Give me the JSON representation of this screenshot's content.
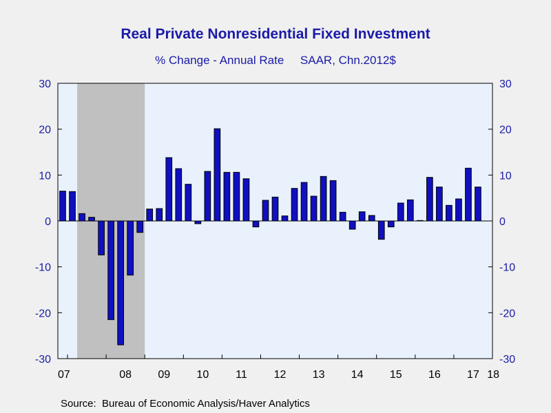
{
  "chart_data": {
    "type": "bar",
    "title": "Real Private Nonresidential Fixed Investment",
    "subtitle": "% Change - Annual Rate     SAAR, Chn.2012$",
    "source": "Source:  Bureau of Economic Analysis/Haver Analytics",
    "ylim": [
      -30,
      30
    ],
    "y_ticks": [
      30,
      20,
      10,
      0,
      -10,
      -20,
      -30
    ],
    "x_tick_labels": [
      "07",
      "08",
      "09",
      "10",
      "11",
      "12",
      "13",
      "14",
      "15",
      "16",
      "17",
      "18"
    ],
    "recession_shading": {
      "start": "2007Q4",
      "end": "2009Q2"
    },
    "grid": false,
    "colors": {
      "bar": "#1010c0",
      "bar_edge": "#000000",
      "plot_bg": "#e9f2fc",
      "recession": "#c0c0c0",
      "text": "#1a1aa8"
    },
    "series": [
      {
        "categories": [
          "2007Q2",
          "2007Q3",
          "2007Q4",
          "2008Q1",
          "2008Q2",
          "2008Q3",
          "2008Q4",
          "2009Q1",
          "2009Q2",
          "2009Q3",
          "2009Q4",
          "2010Q1",
          "2010Q2",
          "2010Q3",
          "2010Q4",
          "2011Q1",
          "2011Q2",
          "2011Q3",
          "2011Q4",
          "2012Q1",
          "2012Q2",
          "2012Q3",
          "2012Q4",
          "2013Q1",
          "2013Q2",
          "2013Q3",
          "2013Q4",
          "2014Q1",
          "2014Q2",
          "2014Q3",
          "2014Q4",
          "2015Q1",
          "2015Q2",
          "2015Q3",
          "2015Q4",
          "2016Q1",
          "2016Q2",
          "2016Q3",
          "2016Q4",
          "2017Q1",
          "2017Q2",
          "2017Q3",
          "2017Q4",
          "2018Q1",
          "2018Q2"
        ],
        "values": [
          6.5,
          6.4,
          1.6,
          0.8,
          -7.4,
          -21.5,
          -27.0,
          -11.8,
          -2.5,
          2.6,
          2.7,
          13.8,
          11.4,
          8.0,
          -0.6,
          10.8,
          20.1,
          10.6,
          10.6,
          9.2,
          -1.3,
          4.5,
          5.2,
          1.1,
          7.1,
          8.4,
          5.4,
          9.7,
          8.8,
          1.9,
          -1.8,
          2.0,
          1.2,
          -4.0,
          -1.3,
          3.9,
          4.6,
          0.1,
          9.5,
          7.4,
          3.4,
          4.8,
          11.5,
          7.4,
          0
        ]
      }
    ]
  }
}
